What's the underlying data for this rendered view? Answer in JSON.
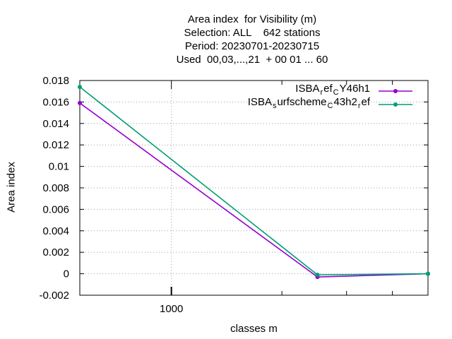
{
  "title_lines": [
    "Area index  for Visibility (m)",
    "Selection: ALL    642 stations",
    "Period: 20230701-20230715",
    "Used  00,03,...,21  + 00 01 ... 60"
  ],
  "colors": {
    "series1": "#9400d3",
    "series2": "#009e73",
    "grid": "#a0a0a0",
    "axis": "#000000"
  },
  "chart_data": {
    "type": "line",
    "xlabel": "classes m",
    "ylabel": "Area index",
    "x_scale": "log",
    "xlim": [
      563,
      5000
    ],
    "ylim": [
      -0.002,
      0.018
    ],
    "x_ticks": [
      1000
    ],
    "x_tick_labels": [
      "1000"
    ],
    "y_ticks": [
      -0.002,
      0,
      0.002,
      0.004,
      0.006,
      0.008,
      0.01,
      0.012,
      0.014,
      0.016,
      0.018
    ],
    "y_tick_labels": [
      "-0.002",
      "0",
      "0.002",
      "0.004",
      "0.006",
      "0.008",
      "0.01",
      "0.012",
      "0.014",
      "0.016",
      "0.018"
    ],
    "grid": true,
    "legend_position": "top-right",
    "series": [
      {
        "name": "ISBA_ref_CY46h1",
        "legend_parts": [
          [
            "ISBA",
            ""
          ],
          [
            "r",
            "sub"
          ],
          [
            "ef",
            ""
          ],
          [
            "C",
            "sub"
          ],
          [
            "Y46h1",
            ""
          ]
        ],
        "color_key": "series1",
        "x": [
          563,
          2500,
          5000
        ],
        "y": [
          0.0159,
          -0.0003,
          0.0
        ]
      },
      {
        "name": "ISBA_surfscheme_C43h2_ref",
        "legend_parts": [
          [
            "ISBA",
            ""
          ],
          [
            "s",
            "sub"
          ],
          [
            "urfscheme",
            ""
          ],
          [
            "C",
            "sub"
          ],
          [
            "43h2",
            ""
          ],
          [
            "r",
            "sub"
          ],
          [
            "ef",
            ""
          ]
        ],
        "color_key": "series2",
        "x": [
          563,
          2500,
          5000
        ],
        "y": [
          0.0174,
          -0.0001,
          0.0
        ]
      }
    ]
  }
}
